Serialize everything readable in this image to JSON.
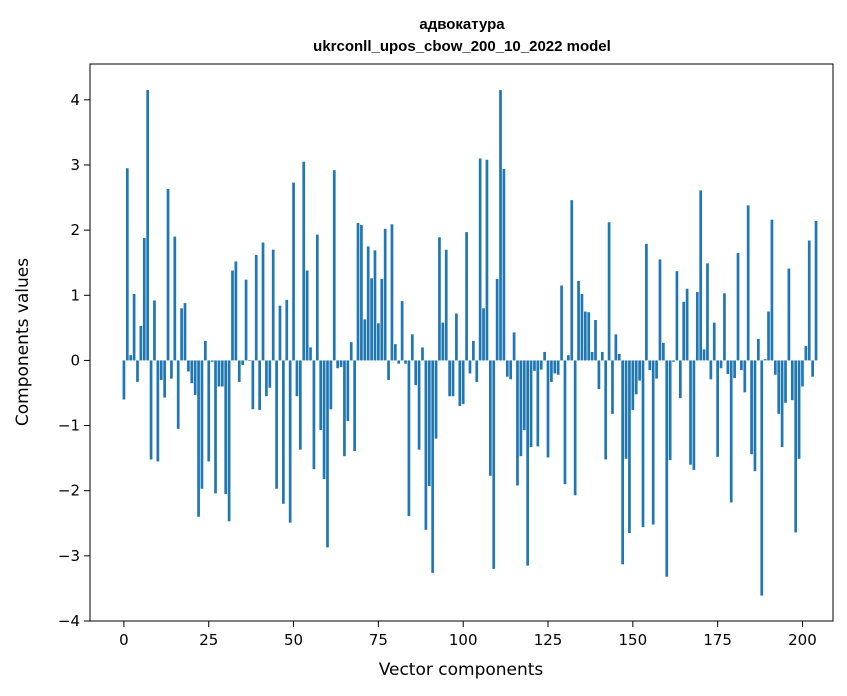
{
  "chart_data": {
    "type": "bar",
    "title_line1": "адвокатура",
    "title_line2": "ukrconll_upos_cbow_200_10_2022 model",
    "xlabel": "Vector components",
    "ylabel": "Components values",
    "xlim": [
      -10,
      209
    ],
    "ylim": [
      -4,
      4.55
    ],
    "x_ticks": [
      0,
      25,
      50,
      75,
      100,
      125,
      150,
      175,
      200
    ],
    "x_tick_labels": [
      "0",
      "25",
      "50",
      "75",
      "100",
      "125",
      "150",
      "175",
      "200"
    ],
    "y_ticks": [
      -4,
      -3,
      -2,
      -1,
      0,
      1,
      2,
      3,
      4
    ],
    "y_tick_labels": [
      "−4",
      "−3",
      "−2",
      "−1",
      "0",
      "1",
      "2",
      "3",
      "4"
    ],
    "bar_color": "#1f77b4",
    "grid": false,
    "values": [
      -0.6,
      2.95,
      0.08,
      1.02,
      -0.33,
      0.53,
      1.88,
      4.15,
      -1.52,
      0.92,
      -1.55,
      -0.3,
      -0.57,
      2.63,
      -0.28,
      1.9,
      -1.05,
      0.8,
      0.88,
      -0.17,
      -0.35,
      -0.53,
      -2.4,
      -1.97,
      0.3,
      -1.55,
      -0.02,
      -2.04,
      -0.4,
      -0.4,
      -2.05,
      -2.47,
      1.38,
      1.52,
      -0.33,
      -0.07,
      1.24,
      -0.01,
      -0.75,
      1.62,
      -0.76,
      1.81,
      -0.55,
      -0.42,
      1.7,
      -1.97,
      0.84,
      -2.2,
      0.93,
      -2.49,
      2.73,
      -0.55,
      -1.37,
      3.05,
      1.38,
      0.2,
      -1.67,
      1.93,
      -1.07,
      -1.82,
      -2.87,
      -0.75,
      2.92,
      -0.12,
      -0.1,
      -1.47,
      -0.93,
      0.28,
      -1.39,
      2.11,
      2.08,
      0.63,
      1.75,
      1.26,
      1.69,
      0.57,
      1.25,
      2.02,
      -0.3,
      2.09,
      0.25,
      -0.05,
      0.91,
      -0.05,
      -2.39,
      0.4,
      -0.38,
      -1.37,
      0.2,
      -2.6,
      -1.93,
      -3.26,
      -1.2,
      1.89,
      0.58,
      1.7,
      -0.55,
      -0.55,
      0.72,
      -0.7,
      -0.67,
      1.97,
      -0.2,
      0.3,
      -0.33,
      3.1,
      0.8,
      3.08,
      -1.77,
      -3.2,
      1.25,
      4.15,
      2.94,
      -0.25,
      -0.29,
      0.43,
      -1.92,
      -1.47,
      -1.07,
      -3.15,
      -1.33,
      -0.16,
      -1.32,
      -0.14,
      0.13,
      -1.49,
      -0.33,
      -0.2,
      -0.22,
      1.15,
      -1.9,
      0.08,
      2.46,
      -2.07,
      1.22,
      1.02,
      0.75,
      0.74,
      0.13,
      0.62,
      -0.44,
      0.13,
      -1.52,
      2.12,
      -0.82,
      0.4,
      0.1,
      -3.13,
      -1.51,
      -2.65,
      -0.76,
      -0.52,
      -0.31,
      -2.56,
      1.79,
      -0.15,
      -2.52,
      -0.28,
      1.55,
      0.27,
      -3.32,
      -1.53,
      -0.02,
      1.37,
      -0.58,
      0.9,
      1.1,
      -1.6,
      -1.68,
      1.05,
      2.61,
      0.17,
      1.49,
      -0.29,
      0.58,
      -1.48,
      -0.12,
      1.03,
      -0.21,
      -2.18,
      -0.27,
      1.65,
      -0.15,
      -0.49,
      2.38,
      -1.44,
      -1.7,
      0.33,
      -3.61,
      0.02,
      0.75,
      2.16,
      -0.22,
      -0.82,
      -1.33,
      -0.65,
      1.41,
      -0.61,
      -2.64,
      -1.51,
      -0.4,
      0.22,
      1.84,
      -0.25,
      2.14
    ]
  }
}
